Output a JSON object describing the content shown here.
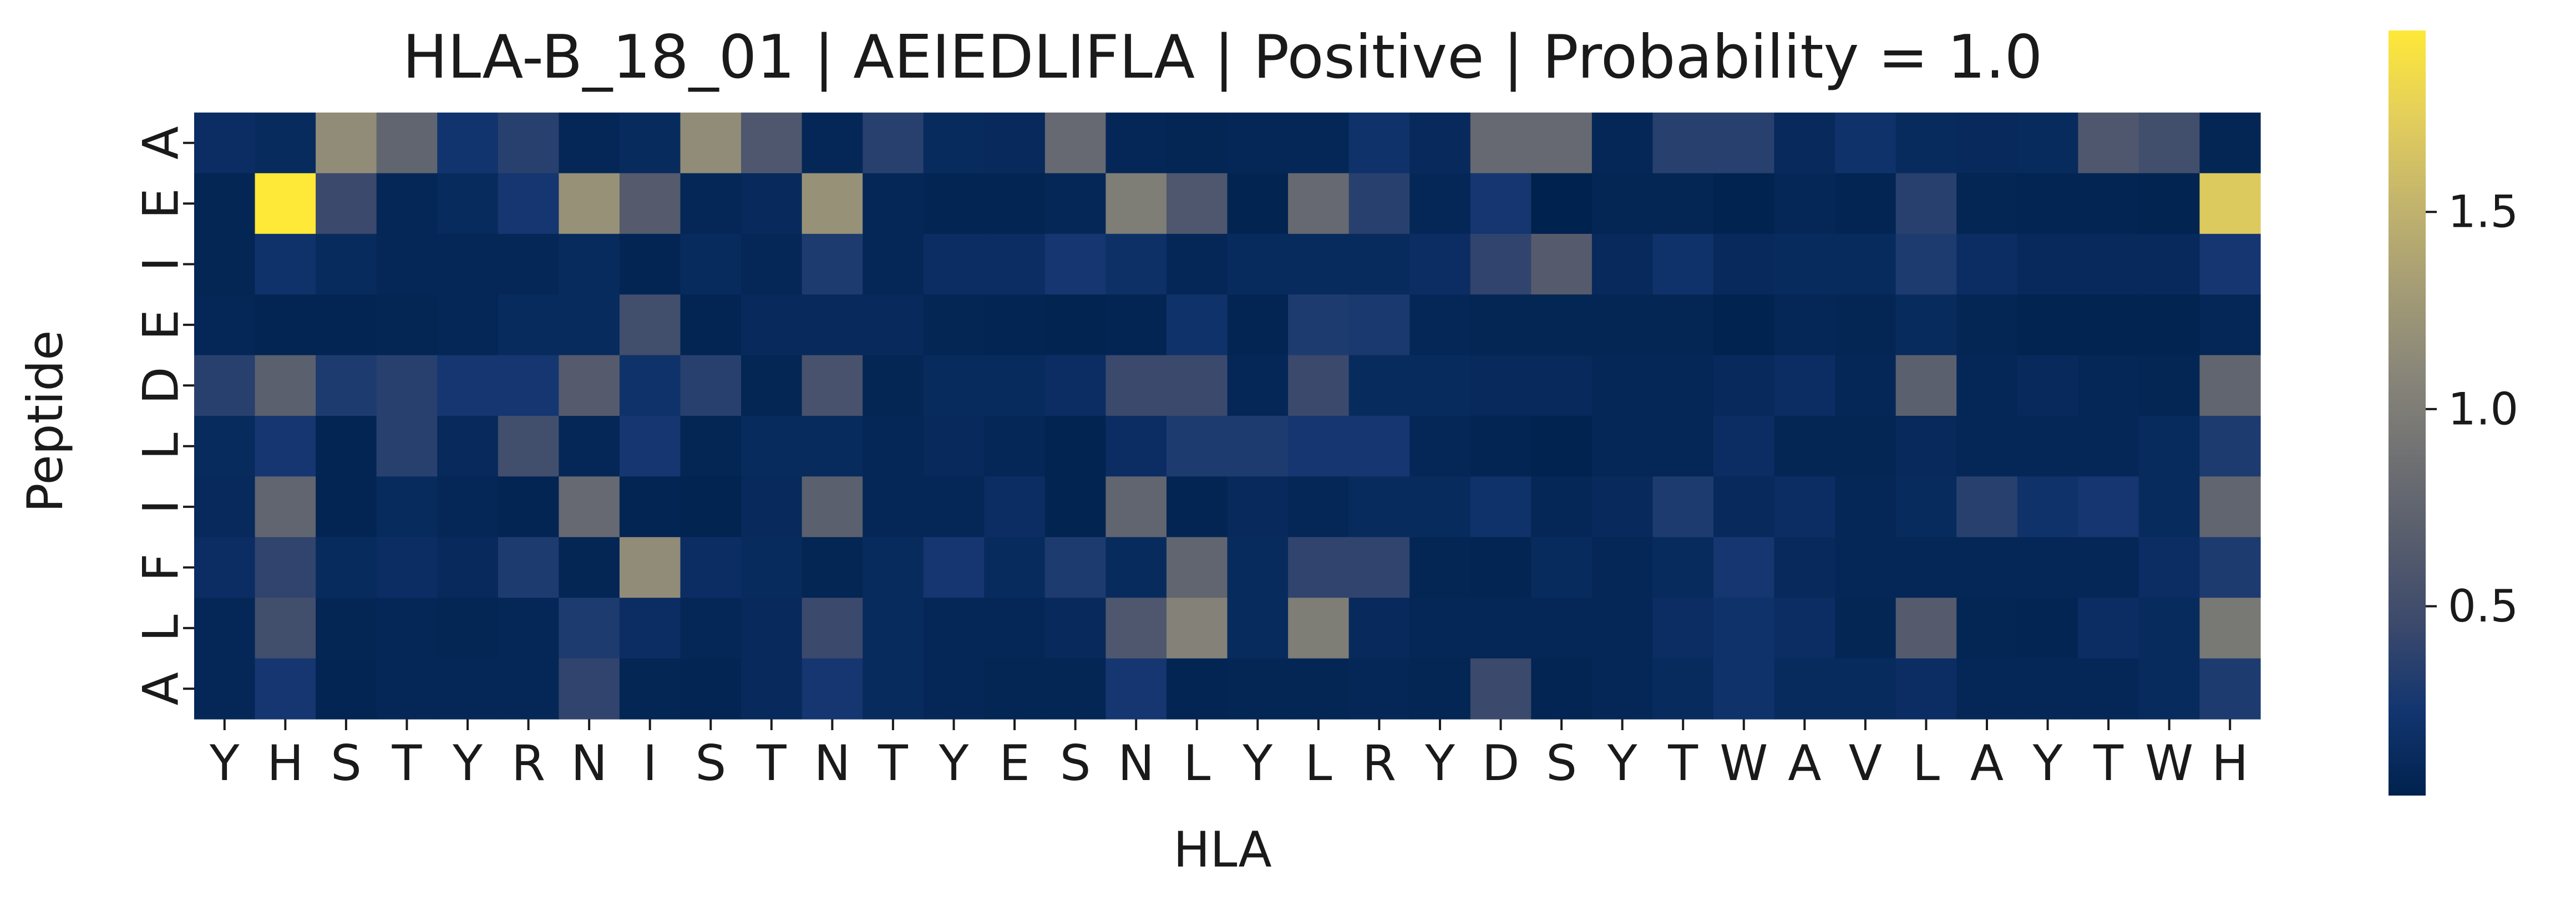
{
  "chart_data": {
    "type": "heatmap",
    "title": "HLA-B_18_01 | AEIEDLIFLA | Positive | Probability = 1.0",
    "xlabel": "HLA",
    "ylabel": "Peptide",
    "x_tick_labels": [
      "Y",
      "H",
      "S",
      "T",
      "Y",
      "R",
      "N",
      "I",
      "S",
      "T",
      "N",
      "T",
      "Y",
      "E",
      "S",
      "N",
      "L",
      "Y",
      "L",
      "R",
      "Y",
      "D",
      "S",
      "Y",
      "T",
      "W",
      "A",
      "V",
      "L",
      "A",
      "Y",
      "T",
      "W",
      "H"
    ],
    "y_tick_labels": [
      "A",
      "E",
      "I",
      "E",
      "D",
      "L",
      "I",
      "F",
      "L",
      "A"
    ],
    "colormap": "cividis",
    "colors": [
      "#00224e",
      "#123570",
      "#3b496c",
      "#575d6d",
      "#707173",
      "#8a8779",
      "#a69d75",
      "#c4b56c",
      "#e4cf5b",
      "#fee838"
    ],
    "vmin": 0.02,
    "vmax": 1.96,
    "colorbar_ticks": [
      0.5,
      1.0,
      1.5
    ],
    "colorbar_tick_labels": [
      "0.5",
      "1.0",
      "1.5"
    ],
    "values": [
      [
        0.15,
        0.12,
        1.15,
        0.75,
        0.22,
        0.35,
        0.08,
        0.12,
        1.15,
        0.6,
        0.08,
        0.35,
        0.12,
        0.1,
        0.8,
        0.08,
        0.06,
        0.08,
        0.08,
        0.2,
        0.1,
        0.8,
        0.8,
        0.08,
        0.35,
        0.35,
        0.1,
        0.2,
        0.12,
        0.1,
        0.12,
        0.6,
        0.5,
        0.06
      ],
      [
        0.06,
        1.96,
        0.45,
        0.08,
        0.12,
        0.25,
        1.2,
        0.65,
        0.08,
        0.1,
        1.2,
        0.08,
        0.05,
        0.05,
        0.08,
        1.0,
        0.6,
        0.04,
        0.8,
        0.35,
        0.08,
        0.25,
        0.02,
        0.06,
        0.06,
        0.03,
        0.08,
        0.05,
        0.35,
        0.06,
        0.05,
        0.05,
        0.04,
        1.7
      ],
      [
        0.06,
        0.2,
        0.12,
        0.08,
        0.08,
        0.08,
        0.12,
        0.05,
        0.12,
        0.08,
        0.3,
        0.08,
        0.15,
        0.15,
        0.25,
        0.18,
        0.08,
        0.12,
        0.12,
        0.12,
        0.15,
        0.4,
        0.65,
        0.1,
        0.2,
        0.1,
        0.12,
        0.12,
        0.3,
        0.15,
        0.1,
        0.1,
        0.1,
        0.25
      ],
      [
        0.08,
        0.05,
        0.05,
        0.06,
        0.08,
        0.12,
        0.12,
        0.5,
        0.05,
        0.1,
        0.1,
        0.1,
        0.06,
        0.05,
        0.04,
        0.05,
        0.2,
        0.05,
        0.3,
        0.28,
        0.08,
        0.06,
        0.06,
        0.06,
        0.06,
        0.03,
        0.08,
        0.06,
        0.12,
        0.06,
        0.04,
        0.04,
        0.04,
        0.08
      ],
      [
        0.35,
        0.7,
        0.3,
        0.35,
        0.25,
        0.25,
        0.65,
        0.2,
        0.35,
        0.06,
        0.55,
        0.06,
        0.12,
        0.12,
        0.15,
        0.45,
        0.45,
        0.08,
        0.45,
        0.12,
        0.12,
        0.1,
        0.1,
        0.08,
        0.08,
        0.1,
        0.15,
        0.08,
        0.7,
        0.08,
        0.1,
        0.08,
        0.06,
        0.75
      ],
      [
        0.12,
        0.25,
        0.05,
        0.35,
        0.1,
        0.5,
        0.08,
        0.25,
        0.06,
        0.12,
        0.12,
        0.08,
        0.1,
        0.08,
        0.04,
        0.15,
        0.3,
        0.3,
        0.25,
        0.25,
        0.08,
        0.05,
        0.03,
        0.08,
        0.08,
        0.15,
        0.06,
        0.06,
        0.1,
        0.08,
        0.08,
        0.08,
        0.12,
        0.3
      ],
      [
        0.1,
        0.75,
        0.05,
        0.12,
        0.08,
        0.05,
        0.8,
        0.05,
        0.04,
        0.1,
        0.7,
        0.08,
        0.08,
        0.15,
        0.04,
        0.75,
        0.05,
        0.1,
        0.08,
        0.12,
        0.12,
        0.2,
        0.08,
        0.1,
        0.3,
        0.1,
        0.15,
        0.08,
        0.12,
        0.35,
        0.2,
        0.25,
        0.12,
        0.75
      ],
      [
        0.15,
        0.4,
        0.12,
        0.15,
        0.1,
        0.3,
        0.06,
        1.15,
        0.15,
        0.12,
        0.06,
        0.12,
        0.25,
        0.12,
        0.3,
        0.12,
        0.75,
        0.12,
        0.4,
        0.4,
        0.06,
        0.05,
        0.12,
        0.08,
        0.12,
        0.25,
        0.1,
        0.08,
        0.08,
        0.08,
        0.08,
        0.08,
        0.15,
        0.3
      ],
      [
        0.08,
        0.5,
        0.06,
        0.08,
        0.06,
        0.08,
        0.3,
        0.15,
        0.08,
        0.1,
        0.45,
        0.12,
        0.08,
        0.08,
        0.1,
        0.6,
        1.05,
        0.12,
        1.0,
        0.1,
        0.08,
        0.08,
        0.08,
        0.08,
        0.15,
        0.2,
        0.15,
        0.06,
        0.65,
        0.06,
        0.05,
        0.15,
        0.12,
        0.95
      ],
      [
        0.08,
        0.25,
        0.05,
        0.08,
        0.08,
        0.08,
        0.4,
        0.06,
        0.05,
        0.1,
        0.25,
        0.12,
        0.08,
        0.06,
        0.06,
        0.25,
        0.05,
        0.06,
        0.06,
        0.08,
        0.06,
        0.45,
        0.05,
        0.08,
        0.12,
        0.2,
        0.12,
        0.12,
        0.15,
        0.08,
        0.08,
        0.08,
        0.12,
        0.3
      ]
    ]
  }
}
